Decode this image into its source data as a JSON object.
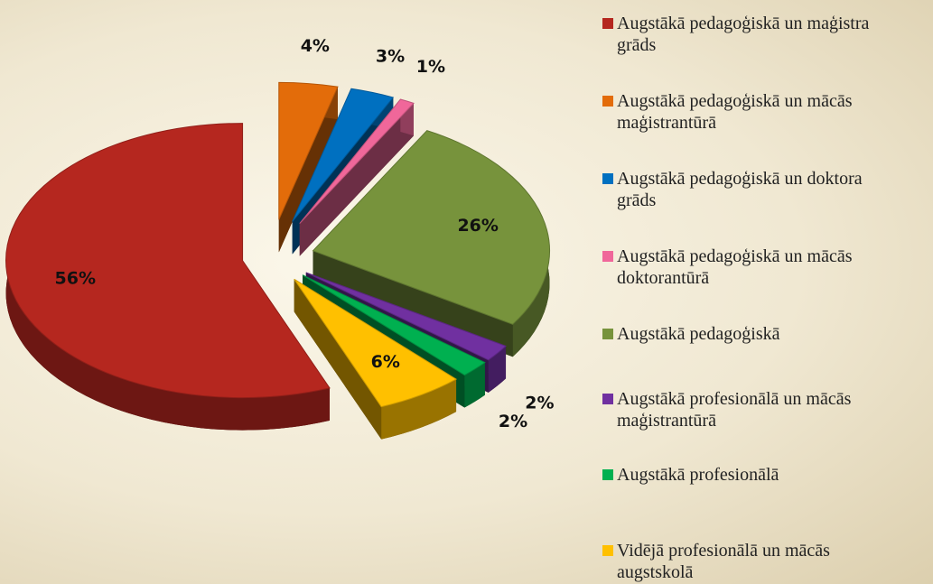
{
  "chart_data": {
    "type": "pie3d",
    "categories": [
      "Augstākā pedagoģiskā un maģistra grāds",
      "Augstākā pedagoģiskā un mācās maģistrantūrā",
      "Augstākā pedagoģiskā un doktora grāds",
      "Augstākā pedagoģiskā un mācās doktorantūrā",
      "Augstākā pedagoģiskā",
      "Augstākā profesionālā un mācās maģistrantūrā",
      "Augstākā profesionālā",
      "Vidējā profesionālā un mācās augstskolā"
    ],
    "values": [
      56,
      4,
      3,
      1,
      26,
      2,
      2,
      6
    ],
    "value_labels": [
      "56%",
      "4%",
      "3%",
      "1%",
      "26%",
      "2%",
      "2%",
      "6%"
    ],
    "colors": [
      "#b5271f",
      "#e36c0a",
      "#0070c0",
      "#f0679a",
      "#77933c",
      "#7030a0",
      "#00b050",
      "#ffc000"
    ],
    "legend": "right"
  }
}
